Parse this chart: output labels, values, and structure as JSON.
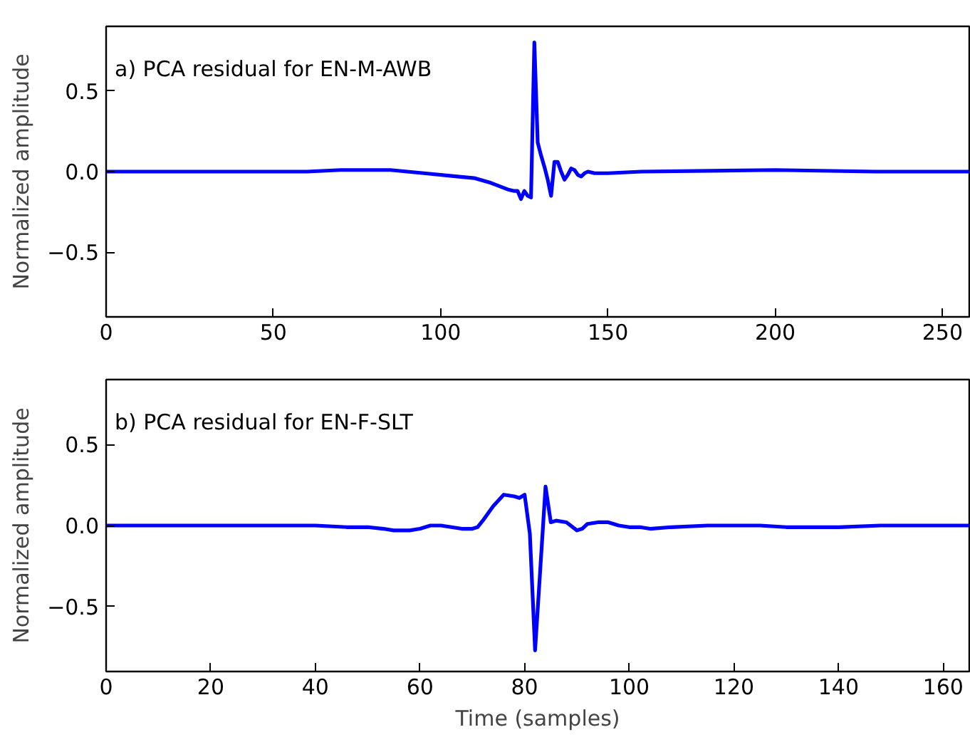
{
  "chart_data": [
    {
      "type": "line",
      "ylabel": "Normalized amplitude",
      "annotations": [
        "a) PCA residual for EN-M-AWB"
      ],
      "xlim": [
        0,
        258
      ],
      "ylim": [
        -0.9,
        0.9
      ],
      "xticks": [
        0,
        50,
        100,
        150,
        200,
        250
      ],
      "yticks": [
        {
          "value": -0.5,
          "label": "−0.5"
        },
        {
          "value": 0,
          "label": "0.0"
        },
        {
          "value": 0.5,
          "label": "0.5"
        }
      ],
      "grid": false,
      "line_style": "solid",
      "series": [
        {
          "color": "#0000ff",
          "x": [
            0,
            50,
            60,
            70,
            85,
            95,
            105,
            110,
            115,
            120,
            122,
            123,
            124,
            125,
            126,
            127,
            128,
            129,
            130,
            131,
            132,
            133,
            134,
            135,
            136,
            137,
            138,
            139,
            140,
            141,
            142,
            143,
            144,
            146,
            150,
            160,
            200,
            230,
            258
          ],
          "values": [
            0,
            0,
            0,
            0.01,
            0.01,
            -0.01,
            -0.03,
            -0.04,
            -0.07,
            -0.11,
            -0.12,
            -0.12,
            -0.17,
            -0.12,
            -0.15,
            -0.16,
            0.8,
            0.18,
            0.1,
            0.03,
            -0.05,
            -0.15,
            0.06,
            0.06,
            0.0,
            -0.05,
            -0.02,
            0.02,
            0.01,
            -0.02,
            -0.03,
            -0.01,
            0.0,
            -0.01,
            -0.01,
            0,
            0.01,
            0,
            0
          ]
        }
      ]
    },
    {
      "type": "line",
      "xlabel": "Time (samples)",
      "ylabel": "Normalized amplitude",
      "annotations": [
        "b) PCA residual for EN-F-SLT"
      ],
      "xlim": [
        0,
        165
      ],
      "ylim": [
        -0.9,
        0.9
      ],
      "xticks": [
        0,
        20,
        40,
        60,
        80,
        100,
        120,
        140,
        160
      ],
      "yticks": [
        {
          "value": -0.5,
          "label": "−0.5"
        },
        {
          "value": 0,
          "label": "0.0"
        },
        {
          "value": 0.5,
          "label": "0.5"
        }
      ],
      "grid": false,
      "line_style": "solid",
      "series": [
        {
          "color": "#0000ff",
          "x": [
            0,
            20,
            40,
            46,
            50,
            53,
            55,
            58,
            60,
            62,
            64,
            66,
            68,
            70,
            71,
            72,
            74,
            76,
            78,
            79,
            80,
            81,
            82,
            84,
            85,
            86,
            88,
            90,
            91,
            92,
            94,
            96,
            98,
            100,
            102,
            104,
            108,
            115,
            125,
            130,
            140,
            148,
            160,
            165
          ],
          "values": [
            0,
            0,
            0,
            -0.01,
            -0.01,
            -0.02,
            -0.03,
            -0.03,
            -0.02,
            0.0,
            0.0,
            -0.01,
            -0.02,
            -0.02,
            -0.01,
            0.03,
            0.12,
            0.19,
            0.18,
            0.17,
            0.19,
            -0.05,
            -0.77,
            0.24,
            0.02,
            0.03,
            0.02,
            -0.03,
            -0.02,
            0.01,
            0.02,
            0.02,
            0.0,
            -0.01,
            -0.01,
            -0.02,
            -0.01,
            0,
            0,
            -0.01,
            -0.01,
            0,
            0,
            0
          ]
        }
      ]
    }
  ]
}
